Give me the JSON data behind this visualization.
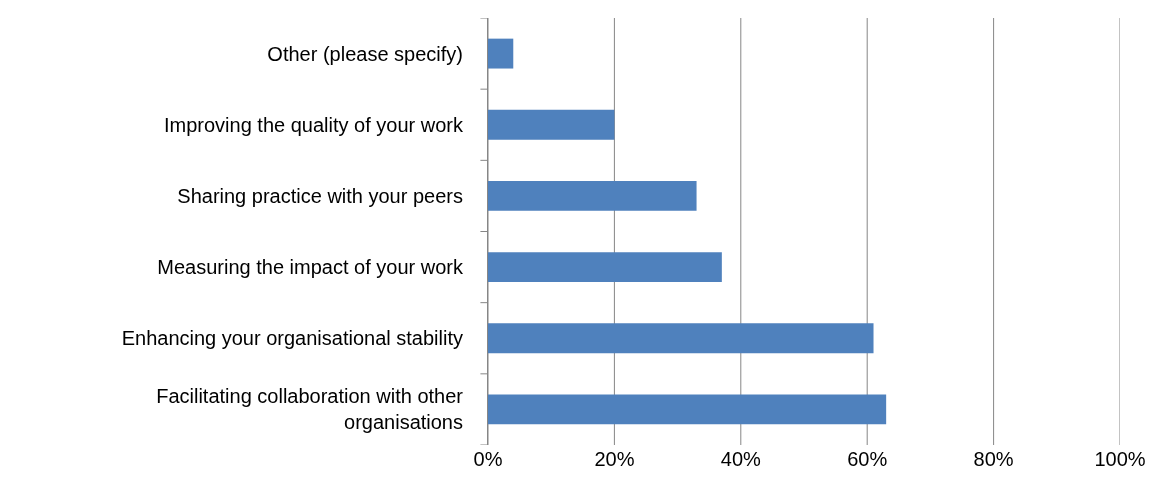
{
  "chart_data": {
    "type": "bar",
    "orientation": "horizontal",
    "categories": [
      "Other (please specify)",
      "Improving the quality of your work",
      "Sharing practice with your peers",
      "Measuring the impact of your work",
      "Enhancing your organisational stability",
      "Facilitating collaboration with other organisations"
    ],
    "values": [
      4,
      20,
      33,
      37,
      61,
      63
    ],
    "color": "#4f81bd",
    "xlim": [
      0,
      100
    ],
    "xticks": [
      {
        "value": 0,
        "label": "0%"
      },
      {
        "value": 20,
        "label": "20%"
      },
      {
        "value": 40,
        "label": "40%"
      },
      {
        "value": 60,
        "label": "60%"
      },
      {
        "value": 80,
        "label": "80%"
      },
      {
        "value": 100,
        "label": "100%"
      }
    ],
    "grid": "x"
  }
}
